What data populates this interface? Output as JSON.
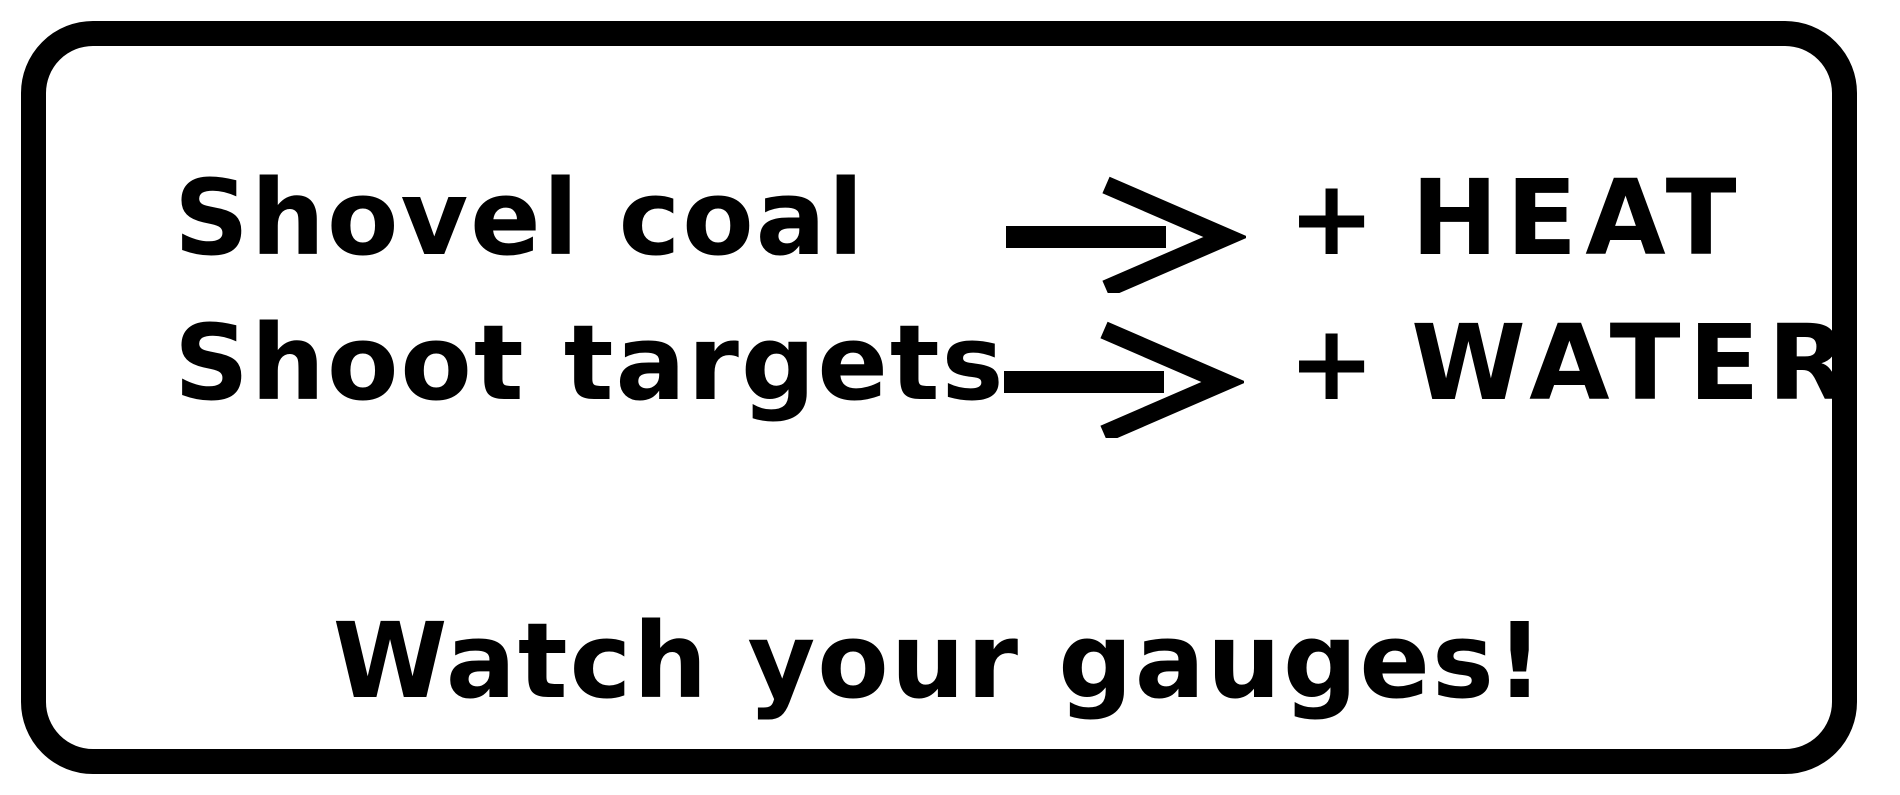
{
  "rules": [
    {
      "action": "Shovel coal",
      "sign": "+",
      "resource": "HEAT"
    },
    {
      "action": "Shoot targets",
      "sign": "+",
      "resource": "WATER"
    }
  ],
  "footer": {
    "text": "Watch your gauges!"
  },
  "icons": {
    "arrow": "right-arrow-icon"
  },
  "colors": {
    "ink": "#000000",
    "background": "#ffffff"
  }
}
